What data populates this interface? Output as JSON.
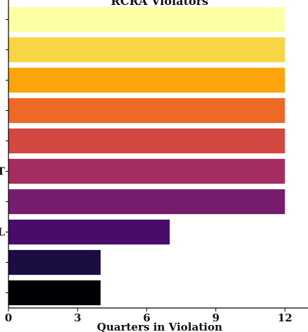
{
  "chart_data": {
    "type": "bar",
    "orientation": "horizontal",
    "title": "RCRA Violators",
    "xlabel": "Quarters in Violation",
    "ylabel": "",
    "xlim": [
      0,
      13
    ],
    "xticks": [
      "0",
      "3",
      "6",
      "9",
      "12"
    ],
    "categories": [
      "",
      "",
      "",
      "",
      "",
      "T",
      "",
      "L",
      "",
      ""
    ],
    "values": [
      12,
      12,
      12,
      12,
      12,
      12,
      12,
      7,
      4,
      4
    ],
    "colors": [
      "#fcffa4",
      "#f6d645",
      "#fca50a",
      "#ed6925",
      "#d44842",
      "#a52c60",
      "#781c6d",
      "#4a0c6b",
      "#1b0c41",
      "#000004"
    ],
    "grid": false,
    "legend": "none"
  }
}
